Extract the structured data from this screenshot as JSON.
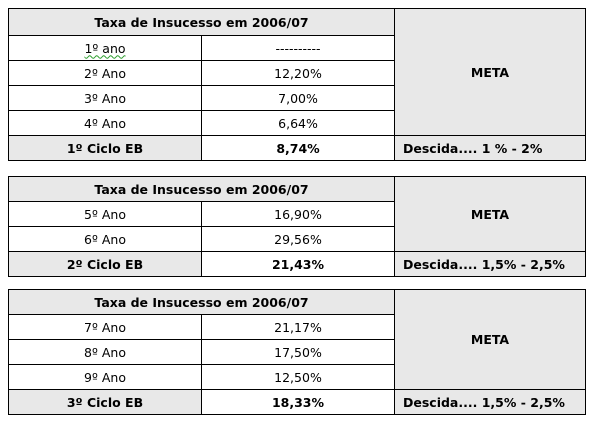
{
  "tables": [
    {
      "header": "Taxa de Insucesso em 2006/07",
      "meta_label": "META",
      "rows": [
        {
          "year": "1º ano",
          "value": "----------"
        },
        {
          "year": "2º Ano",
          "value": "12,20%"
        },
        {
          "year": "3º Ano",
          "value": "7,00%"
        },
        {
          "year": "4º Ano",
          "value": "6,64%"
        }
      ],
      "total_label": "1º Ciclo EB",
      "total_value": "8,74%",
      "meta_value": "Descida.... 1 % - 2%"
    },
    {
      "header": "Taxa de Insucesso em 2006/07",
      "meta_label": "META",
      "rows": [
        {
          "year": "5º Ano",
          "value": "16,90%"
        },
        {
          "year": "6º Ano",
          "value": "29,56%"
        }
      ],
      "total_label": "2º Ciclo EB",
      "total_value": "21,43%",
      "meta_value": "Descida.... 1,5% - 2,5%"
    },
    {
      "header": "Taxa de Insucesso em 2006/07",
      "meta_label": "META",
      "rows": [
        {
          "year": "7º Ano",
          "value": "21,17%"
        },
        {
          "year": "8º Ano",
          "value": "17,50%"
        },
        {
          "year": "9º Ano",
          "value": "12,50%"
        }
      ],
      "total_label": "3º Ciclo EB",
      "total_value": "18,33%",
      "meta_value": "Descida.... 1,5% - 2,5%"
    }
  ],
  "colors": {
    "header_fill": "#e8e8e8",
    "border": "#000000",
    "spellcheck_underline": "#2a9d2a"
  }
}
